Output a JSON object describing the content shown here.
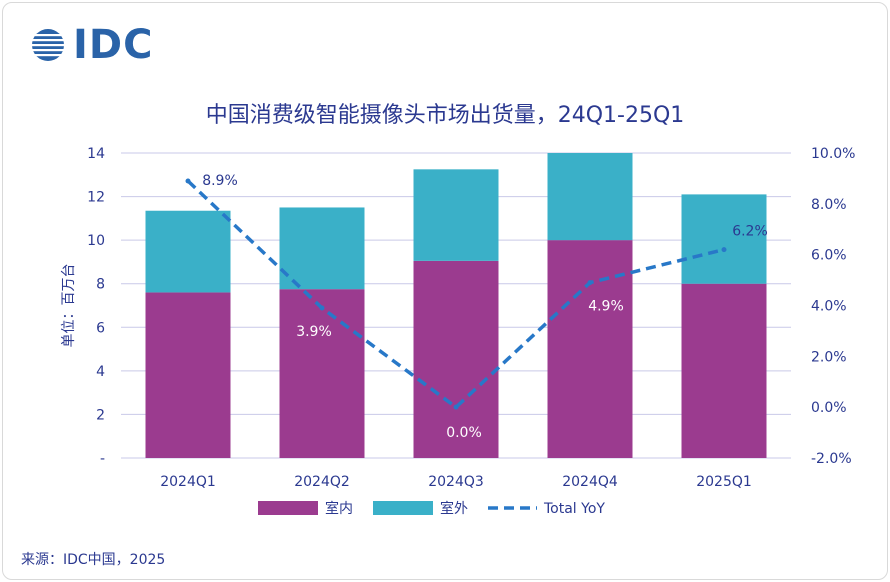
{
  "logo": {
    "text": "IDC"
  },
  "source": "来源：IDC中国，2025",
  "chart_data": {
    "type": "bar",
    "stacked": true,
    "title": "中国消费级智能摄像头市场出货量，24Q1-25Q1",
    "ylabel": "单位：百万台",
    "categories": [
      "2024Q1",
      "2024Q2",
      "2024Q3",
      "2024Q4",
      "2025Q1"
    ],
    "ylim": [
      0,
      14
    ],
    "y_ticks": [
      "-",
      "2",
      "4",
      "6",
      "8",
      "10",
      "12",
      "14"
    ],
    "y2lim": [
      -2.0,
      10.0
    ],
    "y2_ticks": [
      "-2.0%",
      "0.0%",
      "2.0%",
      "4.0%",
      "6.0%",
      "8.0%",
      "10.0%"
    ],
    "series": [
      {
        "name": "室内",
        "color": "#9b3b8f",
        "values": [
          7.6,
          7.75,
          9.05,
          10.0,
          8.0
        ]
      },
      {
        "name": "室外",
        "color": "#3ab0c8",
        "values": [
          3.75,
          3.75,
          4.2,
          4.0,
          4.1
        ]
      }
    ],
    "line_series": {
      "name": "Total YoY",
      "color": "#2878c8",
      "axis": "right",
      "values": [
        8.9,
        3.9,
        0.0,
        4.9,
        6.2
      ],
      "labels": [
        "8.9%",
        "3.9%",
        "0.0%",
        "4.9%",
        "6.2%"
      ]
    },
    "grid": true,
    "legend": "bottom"
  }
}
